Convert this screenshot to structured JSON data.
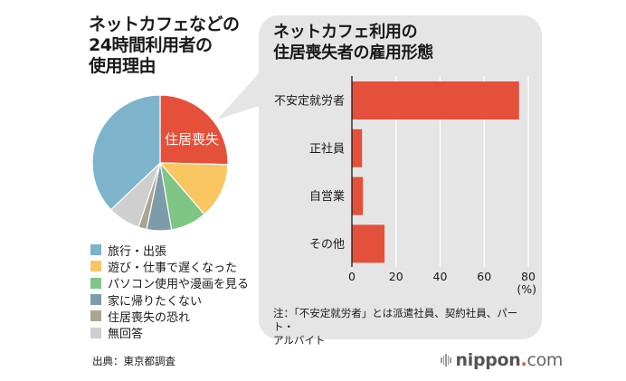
{
  "pie_title_lines": [
    "ネットカフェなどの",
    "24時間利用者の",
    "使用理由"
  ],
  "bar_title_lines": [
    "ネットカフェ利用の",
    "住居喪失者の雇用形態"
  ],
  "note_lines": [
    "注：「不安定就労者」とは派遣社員、契約社員、パート・",
    "アルバイト"
  ],
  "source": "出典：東京都調査",
  "brand": {
    "name": "nippon",
    "dot": ".",
    "tld": "com",
    "icon": "sound-bars-icon"
  },
  "colors": {
    "panel": "#e5e5e5",
    "bar": "#e5503a",
    "accent": "#e5503a"
  },
  "chart_data": [
    {
      "type": "pie",
      "title": "ネットカフェなどの24時間利用者の使用理由",
      "unit": "%",
      "start": "top, clockwise",
      "slices": [
        {
          "label": "住居喪失",
          "value": 25.4,
          "color": "#e5503a",
          "inner_label": "住居喪失",
          "in_legend": false
        },
        {
          "label": "遊び・仕事で遅くなった",
          "value": 13.3,
          "color": "#f9c662",
          "in_legend": true
        },
        {
          "label": "パソコン使用や漫画を見る",
          "value": 8.6,
          "color": "#7ec586",
          "in_legend": true
        },
        {
          "label": "家に帰りたくない",
          "value": 5.9,
          "color": "#7e9ba9",
          "in_legend": true
        },
        {
          "label": "住居喪失の恐れ",
          "value": 2.0,
          "color": "#a8a690",
          "in_legend": true
        },
        {
          "label": "無回答",
          "value": 7.7,
          "color": "#cfcfcf",
          "in_legend": true
        },
        {
          "label": "旅行・出張",
          "value": 37.1,
          "color": "#7db3cb",
          "in_legend": true
        }
      ],
      "legend": [
        {
          "label": "旅行・出張",
          "color": "#7db3cb"
        },
        {
          "label": "遊び・仕事で遅くなった",
          "color": "#f9c662"
        },
        {
          "label": "パソコン使用や漫画を見る",
          "color": "#7ec586"
        },
        {
          "label": "家に帰りたくない",
          "color": "#7e9ba9"
        },
        {
          "label": "住居喪失の恐れ",
          "color": "#a8a690"
        },
        {
          "label": "無回答",
          "color": "#cfcfcf"
        }
      ],
      "legend_position": "bottom-left"
    },
    {
      "type": "bar",
      "orientation": "horizontal",
      "title": "ネットカフェ利用の住居喪失者の雇用形態",
      "categories": [
        "不安定就労者",
        "正社員",
        "自営業",
        "その他"
      ],
      "values": [
        75.8,
        4.6,
        5.0,
        14.8
      ],
      "xlabel": "(%)",
      "xlim": [
        0,
        80
      ],
      "xticks": [
        0,
        20,
        40,
        60,
        80
      ],
      "grid": true,
      "color": "#e5503a"
    }
  ]
}
